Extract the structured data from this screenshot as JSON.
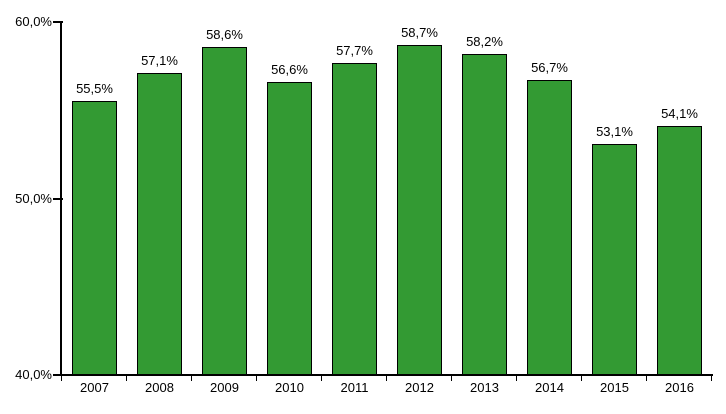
{
  "chart_data": {
    "type": "bar",
    "title": "",
    "xlabel": "",
    "ylabel": "",
    "categories": [
      "2007",
      "2008",
      "2009",
      "2010",
      "2011",
      "2012",
      "2013",
      "2014",
      "2015",
      "2016"
    ],
    "values": [
      55.5,
      57.1,
      58.6,
      56.6,
      57.7,
      58.7,
      58.2,
      56.7,
      53.1,
      54.1
    ],
    "value_labels": [
      "55,5%",
      "57,1%",
      "58,6%",
      "56,6%",
      "57,7%",
      "58,7%",
      "58,2%",
      "56,7%",
      "53,1%",
      "54,1%"
    ],
    "ylim": [
      40,
      60
    ],
    "yticks": [
      {
        "value": 60,
        "label": "60,0%"
      },
      {
        "value": 50,
        "label": "50,0%"
      },
      {
        "value": 40,
        "label": "40,0%"
      }
    ],
    "grid": false,
    "legend": false,
    "colors": {
      "bar_fill": "#339A33",
      "bar_border": "#000000",
      "axis": "#000000",
      "text": "#000000",
      "background": "#FFFFFF"
    }
  }
}
